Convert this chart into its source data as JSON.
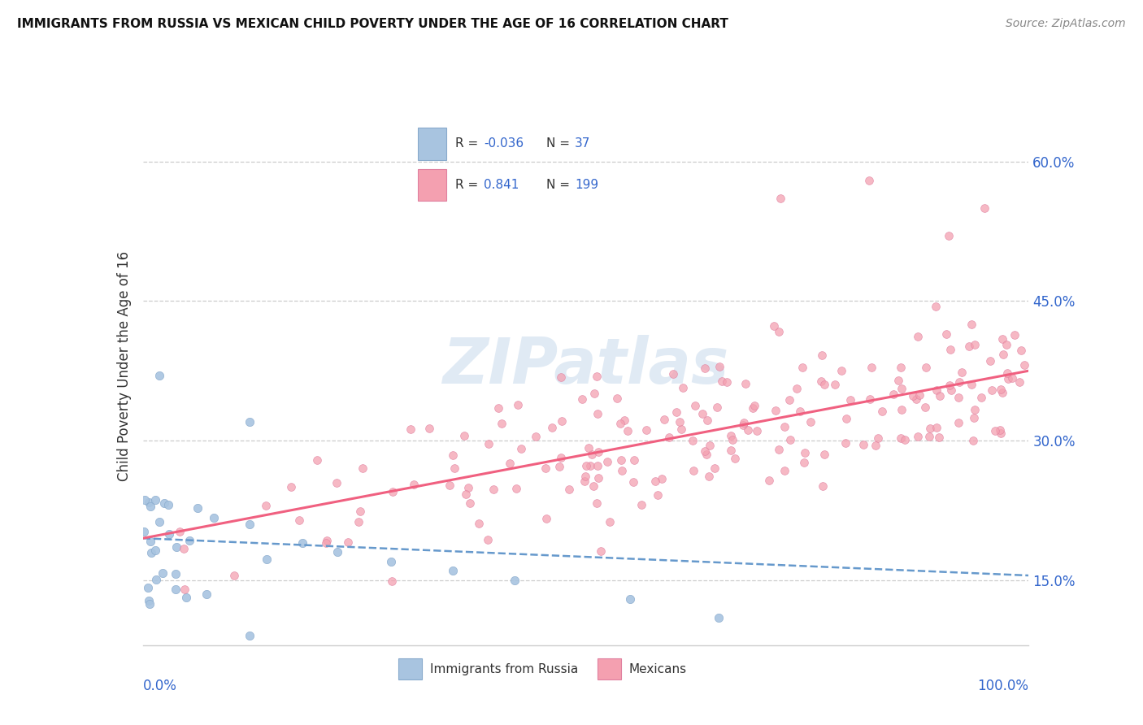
{
  "title": "IMMIGRANTS FROM RUSSIA VS MEXICAN CHILD POVERTY UNDER THE AGE OF 16 CORRELATION CHART",
  "source": "Source: ZipAtlas.com",
  "ylabel": "Child Poverty Under the Age of 16",
  "yticks": [
    0.15,
    0.3,
    0.45,
    0.6
  ],
  "ytick_labels": [
    "15.0%",
    "30.0%",
    "45.0%",
    "60.0%"
  ],
  "watermark": "ZIPatlas",
  "legend_russia_R": "-0.036",
  "legend_russia_N": "37",
  "legend_mexican_R": "0.841",
  "legend_mexican_N": "199",
  "legend_label_russia": "Immigrants from Russia",
  "legend_label_mexican": "Mexicans",
  "russia_color": "#a8c4e0",
  "russian_edge_color": "#88aacc",
  "mexican_color": "#f4a0b0",
  "mexican_edge_color": "#e080a0",
  "russia_line_color": "#6699cc",
  "mexican_line_color": "#f06080",
  "text_blue": "#3366cc",
  "text_dark": "#333333",
  "text_gray": "#999999",
  "grid_color": "#cccccc",
  "xlim": [
    0.0,
    1.0
  ],
  "ylim": [
    0.08,
    0.68
  ],
  "russia_line_x0": 0.0,
  "russia_line_x1": 1.0,
  "russia_line_y0": 0.195,
  "russia_line_y1": 0.155,
  "mexican_line_x0": 0.0,
  "mexican_line_x1": 1.0,
  "mexican_line_y0": 0.195,
  "mexican_line_y1": 0.375
}
